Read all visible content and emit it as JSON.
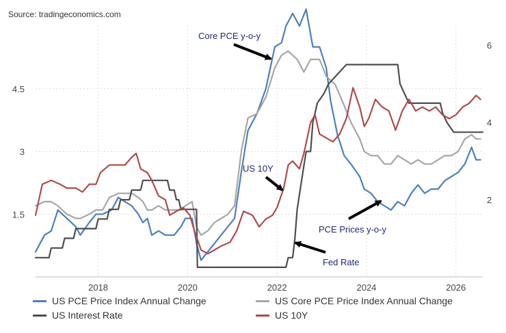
{
  "source": "Source: tradingeconomics.com",
  "chart_data": {
    "type": "line",
    "x_ticks": [
      "2018",
      "2020",
      "2022",
      "2024",
      "2026"
    ],
    "y_left_ticks": [
      "1.5",
      "3",
      "4.5"
    ],
    "y_right_ticks": [
      "2",
      "4",
      "6"
    ],
    "y_left_range": [
      0,
      6
    ],
    "y_right_range": [
      0,
      6.5
    ],
    "x_range": [
      2016.6,
      2026.6
    ],
    "grid": "vertical and horizontal dotted",
    "series": [
      {
        "name": "US PCE Price Index Annual Change",
        "axis": "left",
        "color": "#4a7fc1",
        "points": [
          [
            2016.6,
            0.6
          ],
          [
            2016.8,
            1.0
          ],
          [
            2016.95,
            1.1
          ],
          [
            2017.1,
            1.6
          ],
          [
            2017.3,
            1.4
          ],
          [
            2017.5,
            1.2
          ],
          [
            2017.6,
            1.0
          ],
          [
            2017.8,
            1.3
          ],
          [
            2017.95,
            1.5
          ],
          [
            2018.1,
            1.5
          ],
          [
            2018.3,
            1.6
          ],
          [
            2018.45,
            1.9
          ],
          [
            2018.6,
            1.8
          ],
          [
            2018.75,
            1.7
          ],
          [
            2018.9,
            1.5
          ],
          [
            2019.0,
            1.3
          ],
          [
            2019.1,
            1.4
          ],
          [
            2019.2,
            1.0
          ],
          [
            2019.35,
            1.1
          ],
          [
            2019.5,
            1.0
          ],
          [
            2019.7,
            1.0
          ],
          [
            2019.85,
            1.2
          ],
          [
            2019.95,
            1.4
          ],
          [
            2020.1,
            1.4
          ],
          [
            2020.2,
            0.8
          ],
          [
            2020.3,
            0.4
          ],
          [
            2020.45,
            0.6
          ],
          [
            2020.6,
            0.8
          ],
          [
            2020.75,
            1.0
          ],
          [
            2020.9,
            1.2
          ],
          [
            2021.05,
            1.4
          ],
          [
            2021.2,
            2.5
          ],
          [
            2021.35,
            3.5
          ],
          [
            2021.55,
            3.9
          ],
          [
            2021.75,
            4.5
          ],
          [
            2021.95,
            5.5
          ],
          [
            2022.1,
            5.6
          ],
          [
            2022.2,
            6.0
          ],
          [
            2022.35,
            6.3
          ],
          [
            2022.5,
            6.0
          ],
          [
            2022.65,
            6.4
          ],
          [
            2022.8,
            5.5
          ],
          [
            2022.95,
            5.5
          ],
          [
            2023.1,
            5.0
          ],
          [
            2023.2,
            4.2
          ],
          [
            2023.35,
            3.4
          ],
          [
            2023.5,
            2.9
          ],
          [
            2023.65,
            2.7
          ],
          [
            2023.85,
            2.4
          ],
          [
            2023.95,
            2.1
          ],
          [
            2024.1,
            2.0
          ],
          [
            2024.25,
            1.8
          ],
          [
            2024.4,
            1.7
          ],
          [
            2024.55,
            1.6
          ],
          [
            2024.7,
            1.8
          ],
          [
            2024.85,
            1.7
          ],
          [
            2025.0,
            2.0
          ],
          [
            2025.15,
            2.2
          ],
          [
            2025.3,
            2.0
          ],
          [
            2025.45,
            2.1
          ],
          [
            2025.6,
            2.1
          ],
          [
            2025.75,
            2.3
          ],
          [
            2025.9,
            2.4
          ],
          [
            2026.05,
            2.5
          ],
          [
            2026.2,
            2.7
          ],
          [
            2026.35,
            3.1
          ],
          [
            2026.45,
            2.8
          ],
          [
            2026.55,
            2.8
          ]
        ]
      },
      {
        "name": "US Core PCE Price Index Annual Change",
        "axis": "left",
        "color": "#a6a6a6",
        "points": [
          [
            2016.6,
            1.7
          ],
          [
            2016.8,
            1.8
          ],
          [
            2016.95,
            1.8
          ],
          [
            2017.1,
            1.7
          ],
          [
            2017.3,
            1.5
          ],
          [
            2017.5,
            1.4
          ],
          [
            2017.6,
            1.4
          ],
          [
            2017.8,
            1.5
          ],
          [
            2017.95,
            1.6
          ],
          [
            2018.1,
            1.6
          ],
          [
            2018.25,
            1.9
          ],
          [
            2018.45,
            2.0
          ],
          [
            2018.6,
            2.0
          ],
          [
            2018.75,
            2.0
          ],
          [
            2018.9,
            1.9
          ],
          [
            2019.0,
            1.8
          ],
          [
            2019.1,
            1.6
          ],
          [
            2019.2,
            1.6
          ],
          [
            2019.35,
            1.7
          ],
          [
            2019.5,
            1.6
          ],
          [
            2019.7,
            1.6
          ],
          [
            2019.85,
            1.6
          ],
          [
            2019.95,
            1.7
          ],
          [
            2020.1,
            1.8
          ],
          [
            2020.2,
            1.2
          ],
          [
            2020.3,
            1.0
          ],
          [
            2020.45,
            1.1
          ],
          [
            2020.6,
            1.3
          ],
          [
            2020.75,
            1.4
          ],
          [
            2020.9,
            1.5
          ],
          [
            2021.05,
            1.7
          ],
          [
            2021.2,
            3.0
          ],
          [
            2021.35,
            3.8
          ],
          [
            2021.55,
            3.9
          ],
          [
            2021.75,
            4.3
          ],
          [
            2021.95,
            5.0
          ],
          [
            2022.1,
            5.3
          ],
          [
            2022.25,
            5.4
          ],
          [
            2022.45,
            5.2
          ],
          [
            2022.6,
            4.9
          ],
          [
            2022.75,
            5.2
          ],
          [
            2022.95,
            5.2
          ],
          [
            2023.1,
            4.8
          ],
          [
            2023.3,
            4.6
          ],
          [
            2023.5,
            4.1
          ],
          [
            2023.65,
            3.7
          ],
          [
            2023.85,
            3.3
          ],
          [
            2023.95,
            3.0
          ],
          [
            2024.1,
            2.9
          ],
          [
            2024.25,
            2.9
          ],
          [
            2024.4,
            2.7
          ],
          [
            2024.55,
            2.7
          ],
          [
            2024.7,
            2.9
          ],
          [
            2024.85,
            2.8
          ],
          [
            2025.0,
            2.7
          ],
          [
            2025.15,
            2.8
          ],
          [
            2025.3,
            2.7
          ],
          [
            2025.45,
            2.7
          ],
          [
            2025.6,
            2.8
          ],
          [
            2025.75,
            2.9
          ],
          [
            2025.9,
            2.9
          ],
          [
            2026.05,
            3.0
          ],
          [
            2026.2,
            3.3
          ],
          [
            2026.35,
            3.4
          ],
          [
            2026.45,
            3.3
          ],
          [
            2026.55,
            3.3
          ]
        ]
      },
      {
        "name": "US Interest Rate",
        "axis": "right",
        "color": "#4d4d4d",
        "points": [
          [
            2016.6,
            0.5
          ],
          [
            2016.9,
            0.5
          ],
          [
            2016.95,
            0.75
          ],
          [
            2017.2,
            0.75
          ],
          [
            2017.25,
            1.0
          ],
          [
            2017.45,
            1.0
          ],
          [
            2017.5,
            1.25
          ],
          [
            2017.95,
            1.25
          ],
          [
            2018.0,
            1.5
          ],
          [
            2018.2,
            1.5
          ],
          [
            2018.25,
            1.75
          ],
          [
            2018.45,
            1.75
          ],
          [
            2018.5,
            2.0
          ],
          [
            2018.7,
            2.0
          ],
          [
            2018.75,
            2.25
          ],
          [
            2018.95,
            2.25
          ],
          [
            2019.0,
            2.5
          ],
          [
            2019.55,
            2.5
          ],
          [
            2019.6,
            2.25
          ],
          [
            2019.7,
            2.25
          ],
          [
            2019.75,
            2.0
          ],
          [
            2019.8,
            2.0
          ],
          [
            2019.85,
            1.75
          ],
          [
            2020.2,
            1.75
          ],
          [
            2020.22,
            0.25
          ],
          [
            2022.2,
            0.25
          ],
          [
            2022.25,
            0.5
          ],
          [
            2022.35,
            0.5
          ],
          [
            2022.4,
            1.0
          ],
          [
            2022.45,
            1.75
          ],
          [
            2022.55,
            2.5
          ],
          [
            2022.65,
            3.25
          ],
          [
            2022.75,
            3.25
          ],
          [
            2022.8,
            4.0
          ],
          [
            2022.9,
            4.5
          ],
          [
            2023.05,
            4.75
          ],
          [
            2023.15,
            5.0
          ],
          [
            2023.35,
            5.25
          ],
          [
            2023.55,
            5.5
          ],
          [
            2024.7,
            5.5
          ],
          [
            2024.75,
            5.0
          ],
          [
            2024.85,
            4.75
          ],
          [
            2024.95,
            4.5
          ],
          [
            2025.65,
            4.5
          ],
          [
            2025.7,
            4.25
          ],
          [
            2025.8,
            4.0
          ],
          [
            2025.95,
            3.75
          ],
          [
            2026.6,
            3.75
          ]
        ]
      },
      {
        "name": "US 10Y",
        "axis": "right",
        "color": "#b04a4a",
        "points": [
          [
            2016.6,
            1.6
          ],
          [
            2016.75,
            2.4
          ],
          [
            2016.95,
            2.5
          ],
          [
            2017.15,
            2.4
          ],
          [
            2017.3,
            2.3
          ],
          [
            2017.5,
            2.3
          ],
          [
            2017.65,
            2.2
          ],
          [
            2017.8,
            2.4
          ],
          [
            2017.95,
            2.4
          ],
          [
            2018.05,
            2.7
          ],
          [
            2018.25,
            2.9
          ],
          [
            2018.45,
            2.9
          ],
          [
            2018.6,
            2.9
          ],
          [
            2018.75,
            3.1
          ],
          [
            2018.85,
            3.2
          ],
          [
            2018.95,
            2.8
          ],
          [
            2019.1,
            2.7
          ],
          [
            2019.2,
            2.5
          ],
          [
            2019.35,
            2.1
          ],
          [
            2019.5,
            2.0
          ],
          [
            2019.6,
            1.6
          ],
          [
            2019.75,
            1.7
          ],
          [
            2019.9,
            1.8
          ],
          [
            2020.05,
            1.6
          ],
          [
            2020.15,
            1.2
          ],
          [
            2020.3,
            0.7
          ],
          [
            2020.45,
            0.6
          ],
          [
            2020.6,
            0.7
          ],
          [
            2020.75,
            0.8
          ],
          [
            2020.95,
            0.9
          ],
          [
            2021.1,
            1.2
          ],
          [
            2021.25,
            1.7
          ],
          [
            2021.45,
            1.6
          ],
          [
            2021.6,
            1.3
          ],
          [
            2021.75,
            1.5
          ],
          [
            2021.9,
            1.6
          ],
          [
            2022.0,
            1.8
          ],
          [
            2022.15,
            2.3
          ],
          [
            2022.25,
            2.9
          ],
          [
            2022.35,
            3.0
          ],
          [
            2022.5,
            2.8
          ],
          [
            2022.6,
            3.2
          ],
          [
            2022.75,
            4.0
          ],
          [
            2022.85,
            4.2
          ],
          [
            2022.95,
            3.7
          ],
          [
            2023.1,
            3.6
          ],
          [
            2023.25,
            3.5
          ],
          [
            2023.4,
            3.7
          ],
          [
            2023.55,
            4.1
          ],
          [
            2023.7,
            4.9
          ],
          [
            2023.85,
            4.4
          ],
          [
            2023.95,
            3.9
          ],
          [
            2024.05,
            4.1
          ],
          [
            2024.2,
            4.6
          ],
          [
            2024.35,
            4.4
          ],
          [
            2024.5,
            4.3
          ],
          [
            2024.65,
            3.8
          ],
          [
            2024.8,
            4.3
          ],
          [
            2024.95,
            4.6
          ],
          [
            2025.1,
            4.3
          ],
          [
            2025.25,
            4.4
          ],
          [
            2025.4,
            4.3
          ],
          [
            2025.55,
            4.4
          ],
          [
            2025.7,
            4.2
          ],
          [
            2025.85,
            4.1
          ],
          [
            2026.0,
            4.2
          ],
          [
            2026.15,
            4.4
          ],
          [
            2026.3,
            4.5
          ],
          [
            2026.45,
            4.7
          ],
          [
            2026.55,
            4.6
          ]
        ]
      }
    ],
    "annotations": [
      {
        "text": "Core PCE y-o-y"
      },
      {
        "text": "US 10Y"
      },
      {
        "text": "PCE Prices y-o-y"
      },
      {
        "text": "Fed Rate"
      }
    ]
  }
}
